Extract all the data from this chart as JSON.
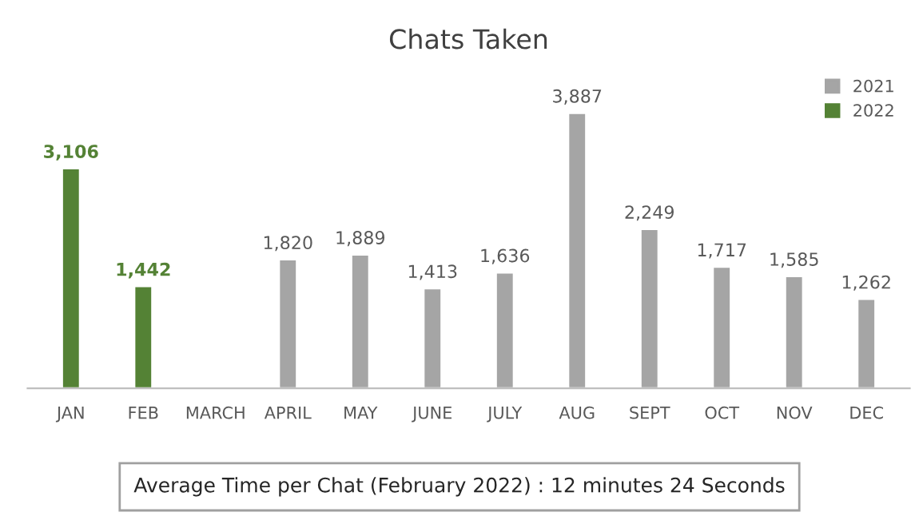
{
  "chart_data": {
    "type": "bar",
    "title": "Chats Taken",
    "categories": [
      "JAN",
      "FEB",
      "MARCH",
      "APRIL",
      "MAY",
      "JUNE",
      "JULY",
      "AUG",
      "SEPT",
      "OCT",
      "NOV",
      "DEC"
    ],
    "series": [
      {
        "name": "2021",
        "color": "#a5a5a5",
        "values": [
          null,
          null,
          null,
          1820,
          1889,
          1413,
          1636,
          3887,
          2249,
          1717,
          1585,
          1262
        ],
        "value_labels": [
          null,
          null,
          null,
          "1,820",
          "1,889",
          "1,413",
          "1,636",
          "3,887",
          "2,249",
          "1,717",
          "1,585",
          "1,262"
        ]
      },
      {
        "name": "2022",
        "color": "#548235",
        "values": [
          3106,
          1442,
          null,
          null,
          null,
          null,
          null,
          null,
          null,
          null,
          null,
          null
        ],
        "value_labels": [
          "3,106",
          "1,442",
          null,
          null,
          null,
          null,
          null,
          null,
          null,
          null,
          null,
          null
        ]
      }
    ],
    "legend": "top right",
    "grid": false,
    "annotations": [
      "Average Time per Chat (February 2022) : 12 minutes 24 Seconds"
    ]
  }
}
